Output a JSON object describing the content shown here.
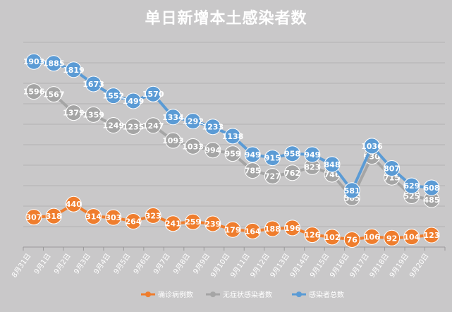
{
  "chart_data": {
    "type": "line",
    "title": "单日新增本土感染者数",
    "categories": [
      "8月31日",
      "9月1日",
      "9月2日",
      "9月3日",
      "9月4日",
      "9月5日",
      "9月6日",
      "9月7日",
      "9月8日",
      "9月9日",
      "9月10日",
      "9月11日",
      "9月12日",
      "9月13日",
      "9月14日",
      "9月15日",
      "9月16日",
      "9月17日",
      "9月18日",
      "9月19日",
      "9月20日"
    ],
    "ylim": [
      0,
      2100
    ],
    "grid": true,
    "legend_position": "bottom",
    "series": [
      {
        "name": "确诊病例数",
        "color": "#ef7d2d",
        "values": [
          307,
          318,
          440,
          314,
          303,
          264,
          323,
          241,
          259,
          239,
          179,
          164,
          188,
          196,
          126,
          102,
          76,
          106,
          92,
          104,
          123
        ]
      },
      {
        "name": "无症状感染者数",
        "color": "#a5a5a5",
        "values": [
          1596,
          1567,
          1379,
          1359,
          1249,
          1235,
          1247,
          1093,
          1033,
          994,
          959,
          785,
          727,
          762,
          823,
          746,
          505,
          930,
          715,
          525,
          485
        ]
      },
      {
        "name": "感染者总数",
        "color": "#5b9bd5",
        "values": [
          1903,
          1885,
          1819,
          1673,
          1552,
          1499,
          1570,
          1334,
          1292,
          1233,
          1138,
          949,
          915,
          958,
          949,
          848,
          581,
          1036,
          807,
          629,
          608
        ]
      }
    ]
  }
}
